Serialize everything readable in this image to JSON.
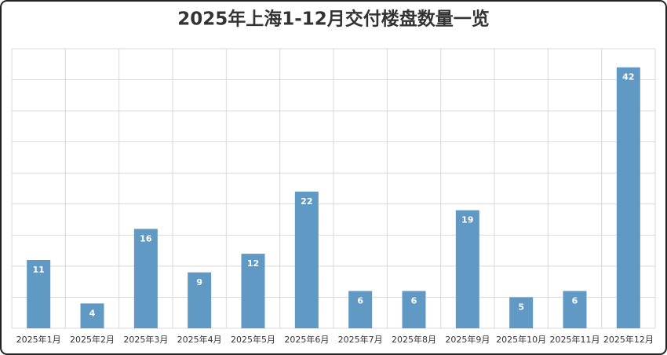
{
  "chart_data": {
    "type": "bar",
    "title": "2025年上海1-12月交付楼盘数量一览",
    "categories": [
      "2025年1月",
      "2025年2月",
      "2025年3月",
      "2025年4月",
      "2025年5月",
      "2025年6月",
      "2025年7月",
      "2025年8月",
      "2025年9月",
      "2025年10月",
      "2025年11月",
      "2025年12月"
    ],
    "values": [
      11,
      4,
      16,
      9,
      12,
      22,
      6,
      6,
      19,
      5,
      6,
      42
    ],
    "color": "#6199c5",
    "ylim": [
      0,
      45
    ],
    "yticks": [
      0,
      5,
      10,
      15,
      20,
      25,
      30,
      35,
      40,
      45
    ],
    "grid": true
  }
}
